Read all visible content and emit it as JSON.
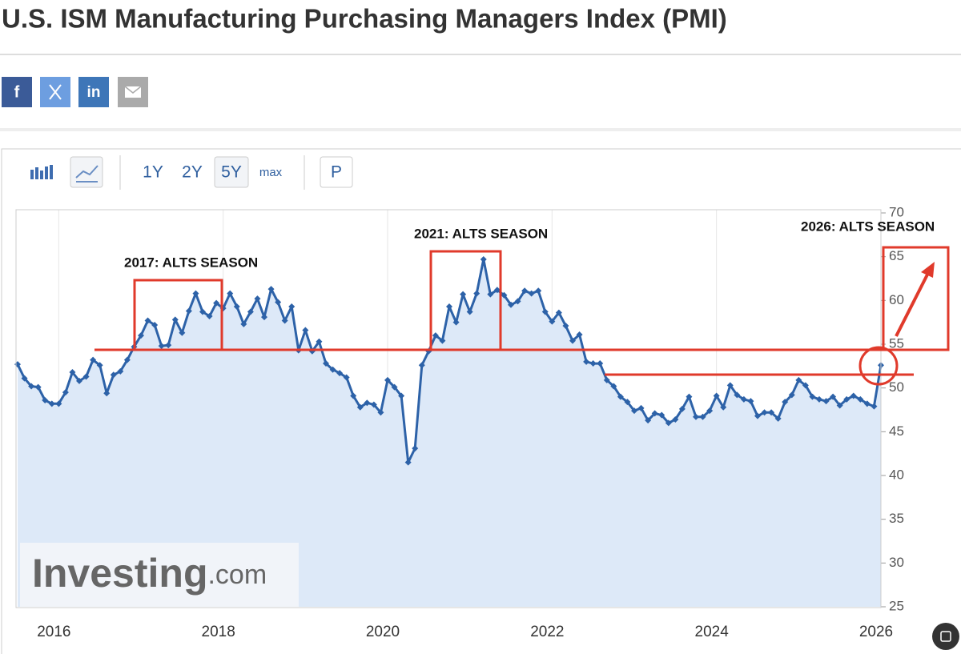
{
  "page_title": "U.S. ISM Manufacturing Purchasing Managers Index (PMI)",
  "share": [
    "f",
    "in"
  ],
  "toolbar": [
    "1Y",
    "2Y",
    "5Y",
    "max",
    "P"
  ],
  "watermark": [
    "Investing",
    ".com"
  ],
  "chart_data": {
    "type": "line",
    "annotations": [
      "2017: ALTS SEASON",
      "2021: ALTS SEASON",
      "2026: ALTS SEASON"
    ],
    "categories": [
      null,
      null,
      null,
      null,
      null,
      null,
      "2016",
      null,
      null,
      null,
      null,
      null,
      null,
      null,
      null,
      null,
      null,
      null,
      null,
      null,
      null,
      null,
      null,
      null,
      null,
      null,
      null,
      null,
      null,
      null,
      "2018",
      null,
      null,
      null,
      null,
      null,
      null,
      null,
      null,
      null,
      null,
      null,
      null,
      null,
      null,
      null,
      null,
      null,
      null,
      null,
      null,
      null,
      null,
      null,
      "2020",
      null,
      null,
      null,
      null,
      null,
      null,
      null,
      null,
      null,
      null,
      null,
      null,
      null,
      null,
      null,
      null,
      null,
      null,
      null,
      null,
      null,
      null,
      null,
      "2022",
      null,
      null,
      null,
      null,
      null,
      null,
      null,
      null,
      null,
      null,
      null,
      null,
      null,
      null,
      null,
      null,
      null,
      null,
      null,
      null,
      null,
      null,
      null,
      "2024",
      null,
      null,
      null,
      null,
      null,
      null,
      null,
      null,
      null,
      null,
      null,
      null,
      null,
      null,
      null,
      null,
      null,
      null,
      null,
      null,
      null,
      null,
      null,
      "2026"
    ],
    "series": [
      {
        "name": "ISM Manufacturing PMI",
        "color": "#2d62a8",
        "values": [
          52.7,
          51.1,
          50.2,
          50.1,
          48.6,
          48.2,
          48.2,
          49.5,
          51.8,
          50.8,
          51.3,
          53.2,
          52.6,
          49.4,
          51.5,
          51.9,
          53.2,
          54.7,
          56.0,
          57.7,
          57.2,
          54.8,
          54.9,
          57.8,
          56.3,
          58.8,
          60.8,
          58.7,
          58.2,
          59.7,
          59.1,
          60.8,
          59.3,
          57.3,
          58.7,
          60.2,
          58.1,
          61.3,
          59.8,
          57.7,
          59.3,
          54.3,
          56.6,
          54.2,
          55.3,
          52.8,
          52.1,
          51.7,
          51.2,
          49.1,
          47.8,
          48.3,
          48.1,
          47.2,
          50.9,
          50.1,
          49.1,
          41.5,
          43.1,
          52.6,
          54.2,
          56.0,
          55.4,
          59.3,
          57.5,
          60.7,
          58.7,
          60.8,
          64.7,
          60.7,
          61.2,
          60.6,
          59.5,
          59.9,
          61.1,
          60.8,
          61.1,
          58.7,
          57.6,
          58.6,
          57.1,
          55.4,
          56.1,
          53.0,
          52.8,
          52.8,
          50.9,
          50.2,
          49.0,
          48.4,
          47.4,
          47.7,
          46.3,
          47.1,
          46.9,
          46.0,
          46.4,
          47.6,
          49.0,
          46.7,
          46.7,
          47.4,
          49.1,
          47.8,
          50.3,
          49.2,
          48.7,
          48.5,
          46.8,
          47.2,
          47.2,
          46.5,
          48.4,
          49.2,
          50.9,
          50.3,
          49.0,
          48.7,
          48.5,
          49.0,
          48.0,
          48.7,
          49.1,
          48.7,
          48.2,
          47.9,
          52.6
        ]
      }
    ],
    "ylim": [
      25,
      70
    ],
    "yticks": [
      25,
      30,
      35,
      40,
      45,
      50,
      55,
      60,
      65,
      70
    ],
    "grid": "x",
    "area_color": "#dde9f8"
  }
}
